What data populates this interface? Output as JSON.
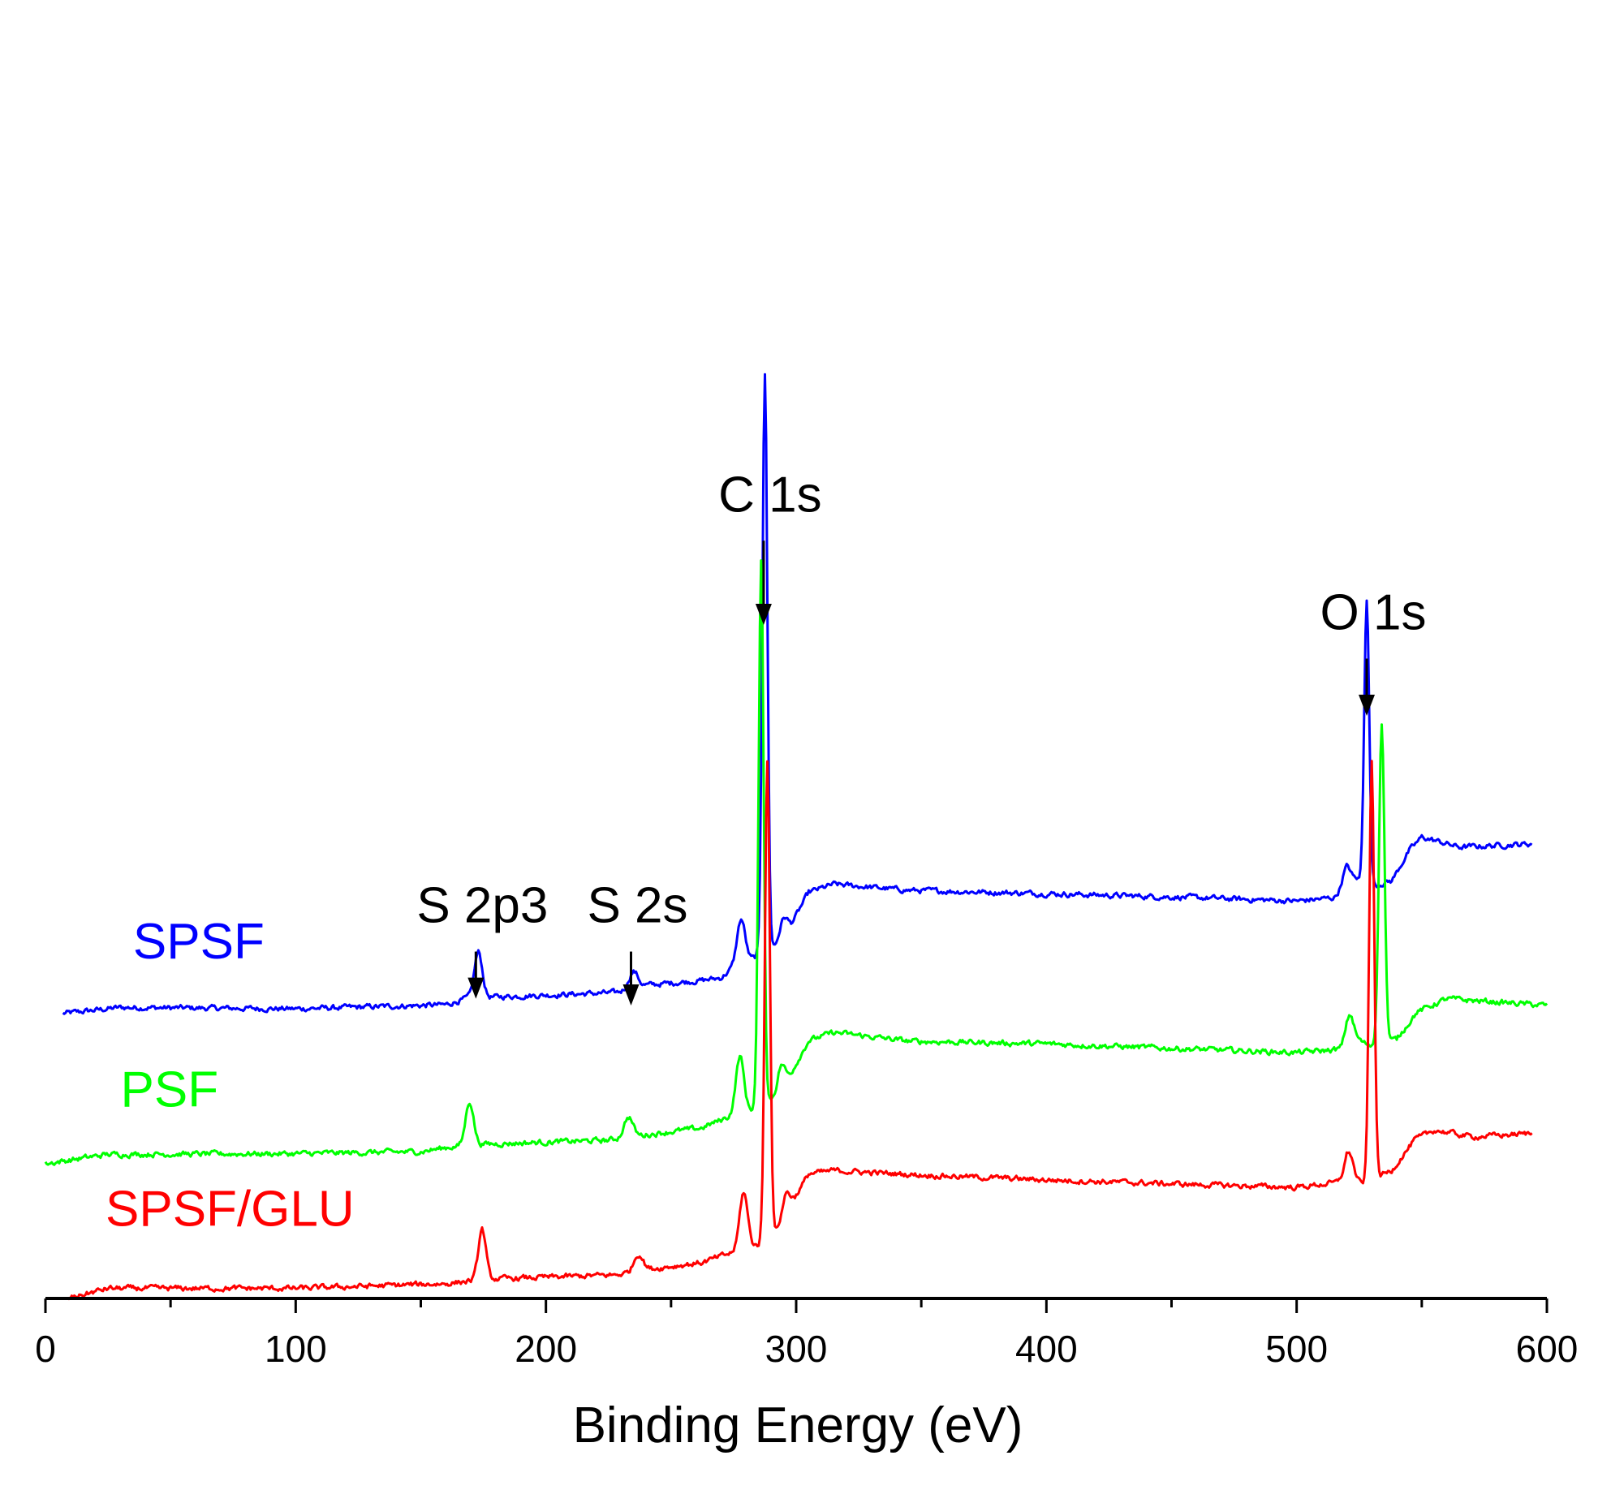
{
  "chart_data": {
    "type": "line",
    "title": "",
    "xlabel": "Binding Energy (eV)",
    "ylabel": "",
    "xlim": [
      0,
      600
    ],
    "ylim": [
      0,
      100
    ],
    "xticks": [
      0,
      100,
      200,
      300,
      400,
      500,
      600
    ],
    "xtick_labels": [
      "0",
      "100",
      "200",
      "300",
      "400",
      "500",
      "600"
    ],
    "minor_xticks": [
      50,
      150,
      250,
      350,
      450,
      550
    ],
    "y_axis_visible": false,
    "grid": false,
    "series": [
      {
        "name": "SPSF",
        "color": "#0000ff",
        "offset": 42,
        "noise": 0.45,
        "points": [
          [
            7,
            0.3
          ],
          [
            30,
            1.2
          ],
          [
            100,
            1.0
          ],
          [
            160,
            1.6
          ],
          [
            168,
            2.5
          ],
          [
            182,
            2.8
          ],
          [
            228,
            3.4
          ],
          [
            240,
            4.5
          ],
          [
            262,
            5.2
          ],
          [
            270,
            5.6
          ],
          [
            276,
            7.5
          ],
          [
            283,
            8.5
          ],
          [
            292,
            10.5
          ],
          [
            298,
            13.5
          ],
          [
            305,
            18.3
          ],
          [
            315,
            19.5
          ],
          [
            345,
            18.6
          ],
          [
            400,
            18.1
          ],
          [
            460,
            17.5
          ],
          [
            500,
            17.0
          ],
          [
            515,
            17.5
          ],
          [
            518,
            18.5
          ],
          [
            524,
            20.3
          ],
          [
            528,
            19.0
          ],
          [
            538,
            20.0
          ],
          [
            545,
            24.5
          ],
          [
            550,
            26.5
          ],
          [
            565,
            25.0
          ],
          [
            594,
            25.5
          ]
        ],
        "peaks": [
          {
            "x": 173,
            "height": 6.8,
            "width": 1.6
          },
          {
            "x": 235,
            "height": 2.5,
            "width": 1.8
          },
          {
            "x": 278,
            "height": 6.5,
            "width": 1.6
          },
          {
            "x": 287.5,
            "height": 86.0,
            "width": 1.0
          },
          {
            "x": 295,
            "height": 2.5,
            "width": 1.5
          },
          {
            "x": 520,
            "height": 3.0,
            "width": 1.6
          },
          {
            "x": 528,
            "height": 43.0,
            "width": 1.0
          }
        ]
      },
      {
        "name": "PSF",
        "color": "#00ff00",
        "offset": 20,
        "noise": 0.45,
        "points": [
          [
            0,
            0.0
          ],
          [
            25,
            1.4
          ],
          [
            100,
            1.5
          ],
          [
            150,
            1.8
          ],
          [
            162,
            2.5
          ],
          [
            175,
            2.9
          ],
          [
            225,
            3.5
          ],
          [
            240,
            4.3
          ],
          [
            262,
            5.3
          ],
          [
            272,
            6.8
          ],
          [
            282,
            8.0
          ],
          [
            292,
            10.0
          ],
          [
            298,
            13.5
          ],
          [
            305,
            18.3
          ],
          [
            315,
            19.5
          ],
          [
            345,
            18.2
          ],
          [
            400,
            17.8
          ],
          [
            460,
            17.0
          ],
          [
            500,
            16.5
          ],
          [
            518,
            17.0
          ],
          [
            522,
            19.0
          ],
          [
            529,
            17.5
          ],
          [
            540,
            18.5
          ],
          [
            548,
            22.5
          ],
          [
            560,
            24.5
          ],
          [
            580,
            24.0
          ],
          [
            600,
            23.5
          ]
        ],
        "peaks": [
          {
            "x": 169.5,
            "height": 6.5,
            "width": 1.6
          },
          {
            "x": 233,
            "height": 3.0,
            "width": 1.8
          },
          {
            "x": 277.5,
            "height": 8.5,
            "width": 1.6
          },
          {
            "x": 286,
            "height": 80.5,
            "width": 1.0
          },
          {
            "x": 294,
            "height": 3.5,
            "width": 1.5
          },
          {
            "x": 521,
            "height": 3.5,
            "width": 1.6
          },
          {
            "x": 534,
            "height": 47.5,
            "width": 1.1
          }
        ]
      },
      {
        "name": "SPSF/GLU",
        "color": "#ff0000",
        "offset": 0,
        "noise": 0.45,
        "points": [
          [
            9,
            0.0
          ],
          [
            25,
            1.5
          ],
          [
            100,
            1.5
          ],
          [
            160,
            2.2
          ],
          [
            172,
            2.7
          ],
          [
            180,
            2.9
          ],
          [
            228,
            3.5
          ],
          [
            240,
            4.3
          ],
          [
            262,
            5.3
          ],
          [
            272,
            6.5
          ],
          [
            285,
            8.0
          ],
          [
            292,
            10.0
          ],
          [
            298,
            14.0
          ],
          [
            305,
            18.5
          ],
          [
            315,
            19.0
          ],
          [
            345,
            18.4
          ],
          [
            400,
            17.6
          ],
          [
            460,
            16.9
          ],
          [
            500,
            16.5
          ],
          [
            516,
            17.2
          ],
          [
            520,
            18.5
          ],
          [
            526,
            17.0
          ],
          [
            538,
            19.0
          ],
          [
            547,
            23.5
          ],
          [
            555,
            25.0
          ],
          [
            570,
            24.0
          ],
          [
            594,
            24.5
          ]
        ],
        "peaks": [
          {
            "x": 174.5,
            "height": 7.5,
            "width": 1.5
          },
          {
            "x": 237,
            "height": 2.5,
            "width": 1.8
          },
          {
            "x": 279,
            "height": 8.5,
            "width": 1.6
          },
          {
            "x": 288.5,
            "height": 71.0,
            "width": 1.0
          },
          {
            "x": 296,
            "height": 3.0,
            "width": 1.5
          },
          {
            "x": 521,
            "height": 3.5,
            "width": 1.6
          },
          {
            "x": 530,
            "height": 62.0,
            "width": 1.0
          }
        ]
      }
    ],
    "annotations": [
      {
        "text": "C 1s",
        "x": 287,
        "arrow_from": 112.5,
        "arrow_to": 100
      },
      {
        "text": "O 1s",
        "x": 528,
        "arrow_from": 95,
        "arrow_to": 86.5
      },
      {
        "text": "S 2p3",
        "x": 172,
        "arrow_from": 51.5,
        "arrow_to": 44.5
      },
      {
        "text": "S 2s",
        "x": 234,
        "arrow_from": 51.5,
        "arrow_to": 43.5
      }
    ],
    "series_labels": [
      {
        "text": "SPSF",
        "x": 35,
        "y": 50.5,
        "color": "#0000ff"
      },
      {
        "text": "PSF",
        "x": 30,
        "y": 28.5,
        "color": "#00ff00"
      },
      {
        "text": "SPSF/GLU",
        "x": 24,
        "y": 10.8,
        "color": "#ff0000"
      }
    ]
  }
}
